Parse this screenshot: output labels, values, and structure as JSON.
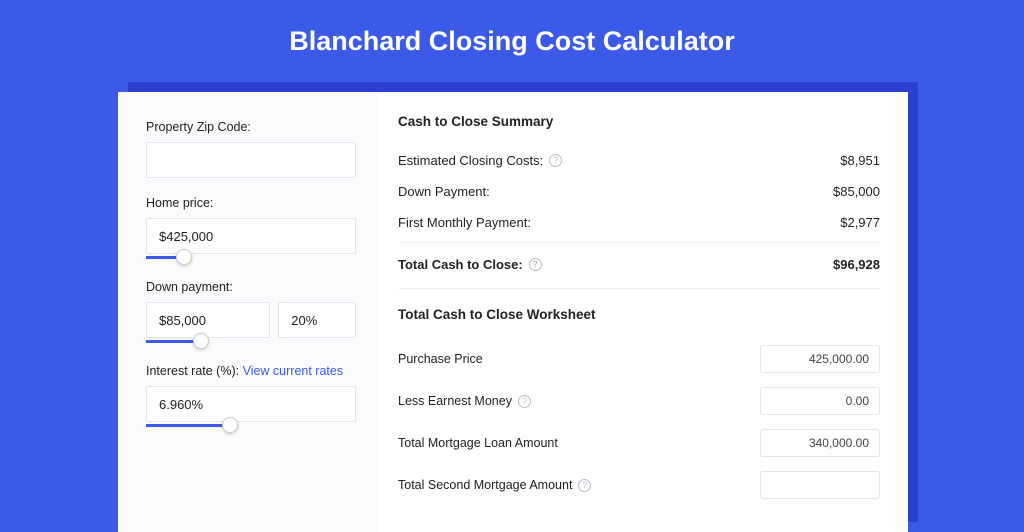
{
  "colors": {
    "page_bg": "#3b5ae8",
    "card_bg": "#ffffff",
    "shadow_bg": "#2a3fd0",
    "sidebar_bg": "#fbfbfe",
    "accent": "#3b5ae8",
    "text": "#222222",
    "muted_border": "#e2e4ea",
    "help_icon": "#bcbcc6"
  },
  "title": "Blanchard Closing Cost Calculator",
  "sidebar": {
    "zip": {
      "label": "Property Zip Code:",
      "value": ""
    },
    "home_price": {
      "label": "Home price:",
      "value": "$425,000",
      "slider_pct": 18
    },
    "down_payment": {
      "label": "Down payment:",
      "value": "$85,000",
      "percent_value": "20%",
      "slider_pct": 26
    },
    "interest": {
      "label": "Interest rate (%):",
      "link_text": "View current rates",
      "value": "6.960%",
      "slider_pct": 40
    }
  },
  "summary": {
    "title": "Cash to Close Summary",
    "rows": [
      {
        "label": "Estimated Closing Costs:",
        "help": true,
        "value": "$8,951"
      },
      {
        "label": "Down Payment:",
        "help": false,
        "value": "$85,000"
      },
      {
        "label": "First Monthly Payment:",
        "help": false,
        "value": "$2,977"
      }
    ],
    "total": {
      "label": "Total Cash to Close:",
      "help": true,
      "value": "$96,928"
    }
  },
  "worksheet": {
    "title": "Total Cash to Close Worksheet",
    "rows": [
      {
        "label": "Purchase Price",
        "help": false,
        "value": "425,000.00"
      },
      {
        "label": "Less Earnest Money",
        "help": true,
        "value": "0.00"
      },
      {
        "label": "Total Mortgage Loan Amount",
        "help": false,
        "value": "340,000.00"
      },
      {
        "label": "Total Second Mortgage Amount",
        "help": true,
        "value": ""
      }
    ]
  }
}
